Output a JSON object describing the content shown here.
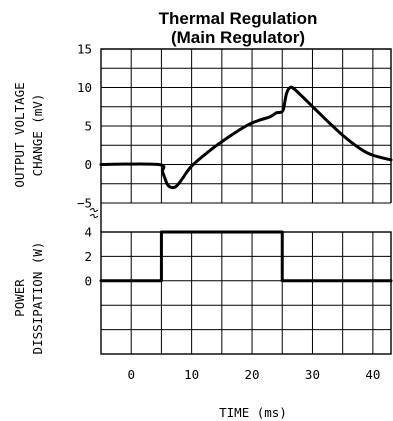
{
  "chart_data": {
    "type": "line",
    "title_line1": "Thermal Regulation",
    "title_line2": "(Main Regulator)",
    "xlabel": "TIME (ms)",
    "x_ticks": [
      "0",
      "10",
      "20",
      "30",
      "40"
    ],
    "xlim": [
      -5,
      43
    ],
    "upper": {
      "ylabel_line1": "OUTPUT VOLTAGE",
      "ylabel_line2": "CHANGE (mV)",
      "ylim": [
        -5,
        15
      ],
      "y_ticks": [
        "15",
        "10",
        "5",
        "0",
        "-5"
      ],
      "series": [
        {
          "x": [
            -5,
            4.5,
            5.2,
            6,
            6.8,
            7.5,
            8.5,
            10,
            13,
            16,
            19,
            21,
            23,
            24,
            24.8,
            25.2,
            25.7,
            26.3,
            27,
            29,
            32,
            35,
            38,
            40,
            43
          ],
          "y": [
            0,
            0,
            -1,
            -2.6,
            -3,
            -2.8,
            -1.8,
            -0.2,
            1.8,
            3.5,
            5,
            5.7,
            6.2,
            6.7,
            6.8,
            7.2,
            9.2,
            10,
            9.8,
            8.3,
            6,
            3.8,
            2,
            1.2,
            0.6
          ]
        }
      ]
    },
    "lower": {
      "ylabel_line1": "POWER",
      "ylabel_line2": "DISSIPATION (W)",
      "ylim": [
        -6,
        4
      ],
      "y_ticks": [
        "4",
        "2",
        "0"
      ],
      "series": [
        {
          "x": [
            -5,
            5,
            5,
            25,
            25,
            43
          ],
          "y": [
            0,
            0,
            4,
            4,
            0,
            0
          ]
        }
      ]
    },
    "grid": true
  }
}
